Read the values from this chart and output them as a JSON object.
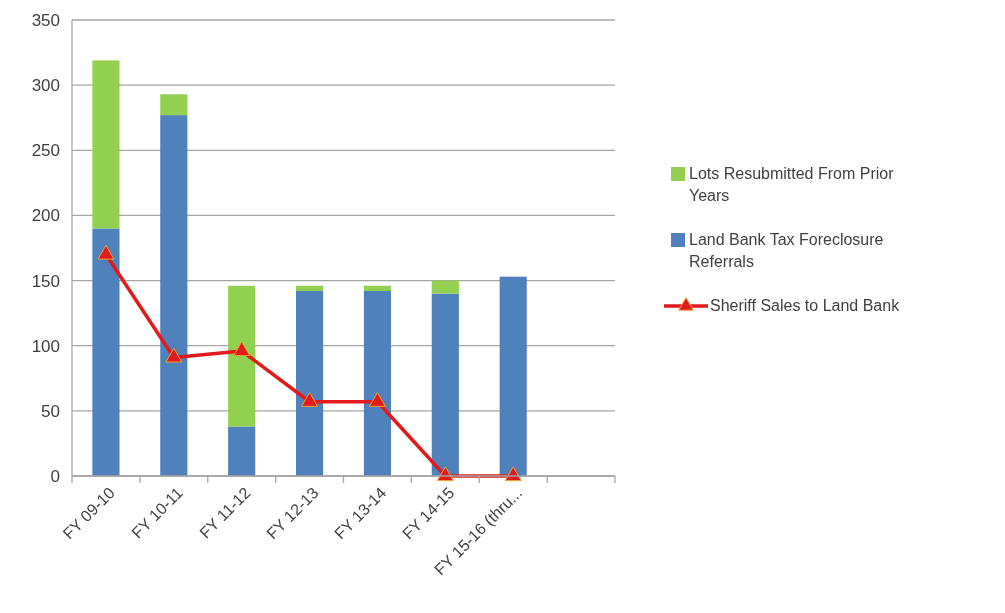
{
  "chart_data": {
    "type": "bar",
    "stacked": true,
    "categories": [
      "FY 09-10",
      "FY 10-11",
      "FY 11-12",
      "FY 12-13",
      "FY 13-14",
      "FY 14-15",
      "FY 15-16 (thru...",
      null
    ],
    "series": [
      {
        "name": "Land Bank Tax Foreclosure Referrals",
        "color": "#4f81bd",
        "values": [
          190,
          277,
          38,
          142,
          142,
          140,
          153,
          null
        ]
      },
      {
        "name": "Lots Resubmitted From Prior Years",
        "color": "#92d050",
        "values": [
          129,
          16,
          108,
          4,
          4,
          10,
          0,
          null
        ]
      },
      {
        "name": "Sheriff Sales to Land Bank",
        "type": "line",
        "color": "#e31a1c",
        "marker": "triangle",
        "values": [
          170,
          91,
          96,
          57,
          57,
          0,
          0,
          null
        ]
      }
    ],
    "ylim": [
      0,
      350
    ],
    "yticks": [
      0,
      50,
      100,
      150,
      200,
      250,
      300,
      350
    ],
    "grid": "y",
    "legend": "right"
  }
}
